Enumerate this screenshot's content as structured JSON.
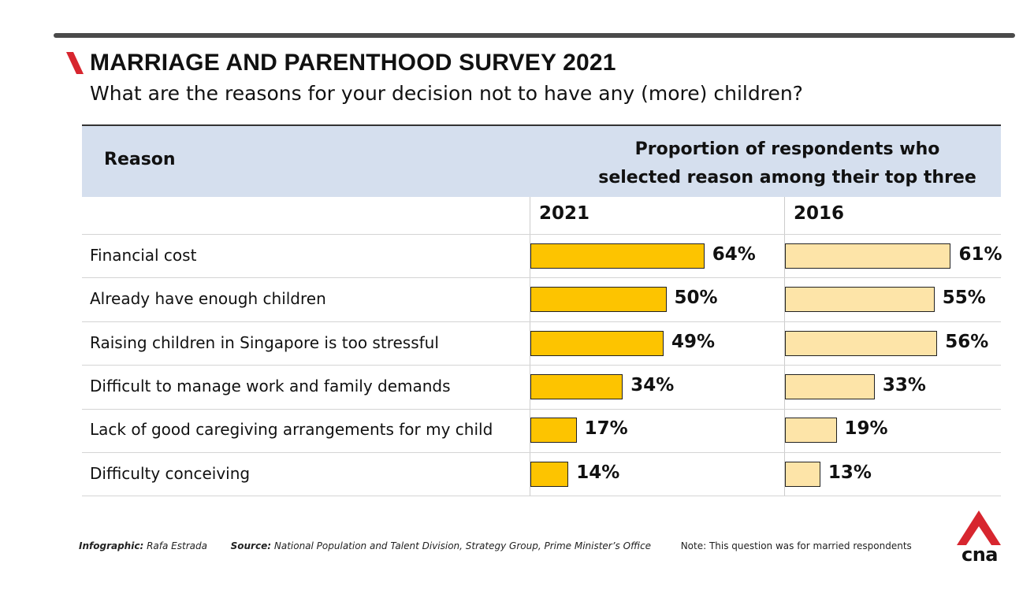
{
  "header": {
    "title": "MARRIAGE AND PARENTHOOD SURVEY 2021",
    "subtitle": "What are the reasons for your decision not to have any (more) children?",
    "accent_color": "#d7262f"
  },
  "table": {
    "col_reason": "Reason",
    "col_proportion_line1": "Proportion of respondents who",
    "col_proportion_line2": "selected reason among their top three",
    "years": [
      "2021",
      "2016"
    ]
  },
  "chart_data": {
    "type": "bar",
    "orientation": "horizontal",
    "categories": [
      "Financial cost",
      "Already have enough children",
      "Raising children in Singapore is too stressful",
      "Difficult to manage work and family demands",
      "Lack of good caregiving arrangements for my child",
      "Difficulty conceiving"
    ],
    "series": [
      {
        "name": "2021",
        "values": [
          64,
          50,
          49,
          34,
          17,
          14
        ],
        "labels": [
          "64%",
          "50%",
          "49%",
          "34%",
          "17%",
          "14%"
        ],
        "color": "#fdc400"
      },
      {
        "name": "2016",
        "values": [
          61,
          55,
          56,
          33,
          19,
          13
        ],
        "labels": [
          "61%",
          "55%",
          "56%",
          "33%",
          "19%",
          "13%"
        ],
        "color": "#fde4a8"
      }
    ],
    "unit": "%",
    "xlim": [
      0,
      100
    ],
    "grid": false,
    "legend": "none"
  },
  "footer": {
    "infographic_key": "Infographic:",
    "infographic_value": "Rafa Estrada",
    "source_key": "Source:",
    "source_value": "National Population and Talent Division, Strategy Group, Prime Minister’s Office",
    "note": "Note: This question was for married respondents"
  },
  "logo": {
    "text": "cna",
    "color": "#d7262f",
    "icon": "cna-logo-icon"
  }
}
